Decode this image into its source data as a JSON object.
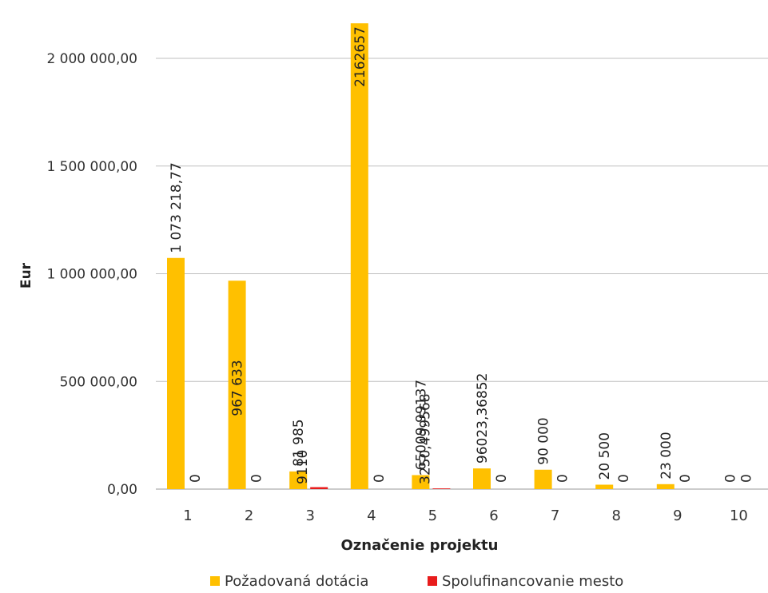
{
  "chart_data": {
    "type": "bar",
    "xlabel": "Označenie projektu",
    "ylabel": "Eur",
    "ylim": [
      0,
      2200000
    ],
    "grid": true,
    "legend_position": "bottom",
    "y_ticks": [
      {
        "value": 0,
        "label": "0,00"
      },
      {
        "value": 500000,
        "label": "500 000,00"
      },
      {
        "value": 1000000,
        "label": "1 000 000,00"
      },
      {
        "value": 1500000,
        "label": "1 500 000,00"
      },
      {
        "value": 2000000,
        "label": "2 000 000,00"
      }
    ],
    "categories": [
      "1",
      "2",
      "3",
      "4",
      "5",
      "6",
      "7",
      "8",
      "9",
      "10"
    ],
    "series": [
      {
        "name": "Požadovaná dotácia",
        "color": "#FFC000",
        "values": [
          1073218.77,
          967633,
          81985,
          2162657,
          65009.99137,
          96023.36852,
          90000,
          20500,
          23000,
          0
        ],
        "labels": [
          "1 073 218,77",
          "967 633",
          "81 985",
          "2162657",
          "65009,99137",
          "96023,36852",
          "90 000",
          "20 500",
          "23 000",
          "0"
        ]
      },
      {
        "name": "Spolufinancovanie mesto",
        "color": "#E81C1C",
        "values": [
          0,
          0,
          9110,
          0,
          3250.499568,
          0,
          0,
          0,
          0,
          0
        ],
        "labels": [
          "0",
          "0",
          "9110",
          "0",
          "3250,499568",
          "0",
          "0",
          "0",
          "0",
          "0"
        ]
      }
    ]
  }
}
